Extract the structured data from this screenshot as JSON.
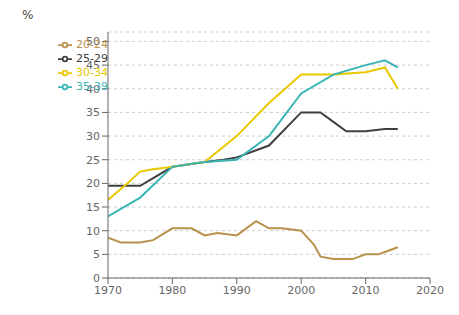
{
  "chart_data": {
    "type": "line",
    "y_label": "%",
    "xlim": [
      1970,
      2020
    ],
    "ylim": [
      0,
      52
    ],
    "yticks": [
      0,
      5,
      10,
      15,
      20,
      25,
      30,
      35,
      40,
      45,
      50
    ],
    "xticks": [
      1970,
      1980,
      1990,
      2000,
      2010,
      2020
    ],
    "grid": "y",
    "legend": "upper left",
    "series": [
      {
        "name": "20-24",
        "color": "#b8924a",
        "x": [
          1970,
          1972,
          1975,
          1977,
          1980,
          1983,
          1985,
          1987,
          1990,
          1993,
          1995,
          1997,
          2000,
          2002,
          2003,
          2005,
          2007,
          2008,
          2010,
          2012,
          2013,
          2015
        ],
        "values": [
          8.5,
          7.5,
          7.5,
          8.0,
          10.5,
          10.5,
          9.0,
          9.5,
          9.0,
          12.0,
          10.5,
          10.5,
          10.0,
          7.0,
          4.5,
          4.0,
          4.0,
          4.0,
          5.0,
          5.0,
          5.5,
          6.5
        ]
      },
      {
        "name": "25-29",
        "color": "#404040",
        "x": [
          1970,
          1975,
          1980,
          1985,
          1988,
          1990,
          1995,
          2000,
          2003,
          2005,
          2007,
          2008,
          2010,
          2013,
          2015
        ],
        "values": [
          19.5,
          19.5,
          23.5,
          24.5,
          25.0,
          25.5,
          28.0,
          35.0,
          35.0,
          33.0,
          31.0,
          31.0,
          31.0,
          31.5,
          31.5
        ]
      },
      {
        "name": "30-34",
        "color": "#e8c800",
        "x": [
          1970,
          1973,
          1975,
          1977,
          1980,
          1985,
          1990,
          1995,
          2000,
          2005,
          2010,
          2013,
          2015
        ],
        "values": [
          16.5,
          20.0,
          22.5,
          23.0,
          23.5,
          24.5,
          30.0,
          37.0,
          43.0,
          43.0,
          43.5,
          44.5,
          40.0
        ]
      },
      {
        "name": "35-39",
        "color": "#3ab5b5",
        "x": [
          1970,
          1975,
          1980,
          1985,
          1990,
          1995,
          2000,
          2005,
          2010,
          2013,
          2015
        ],
        "values": [
          13.0,
          17.0,
          23.5,
          24.5,
          25.0,
          30.0,
          39.0,
          43.0,
          45.0,
          46.0,
          44.5
        ]
      }
    ]
  }
}
